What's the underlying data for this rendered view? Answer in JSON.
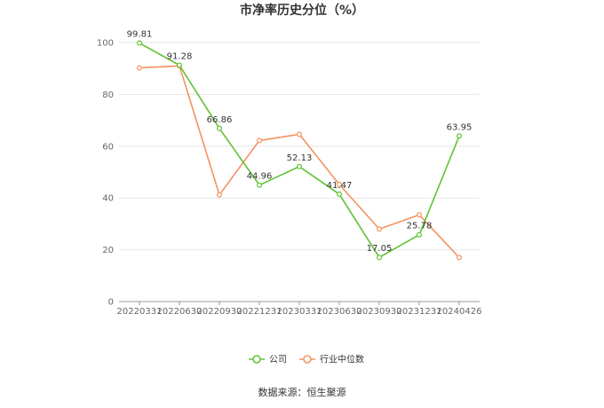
{
  "chart_data": {
    "type": "line",
    "title": "市净率历史分位（%）",
    "categories": [
      "20220331",
      "20220630",
      "20220930",
      "20221231",
      "20230331",
      "20230630",
      "20230930",
      "20231231",
      "20240426"
    ],
    "ylim": [
      0,
      100
    ],
    "yticks": [
      0,
      20,
      40,
      60,
      80,
      100
    ],
    "grid": true,
    "legend": "bottom-center",
    "series": [
      {
        "name": "公司",
        "color": "#5ec232",
        "values": [
          99.81,
          91.28,
          66.86,
          44.96,
          52.13,
          41.47,
          17.05,
          25.78,
          63.95
        ],
        "labels": [
          "99.81",
          "91.28",
          "66.86",
          "44.96",
          "52.13",
          "41.47",
          "17.05",
          "25.78",
          "63.95"
        ]
      },
      {
        "name": "行业中位数",
        "color": "#f4925f",
        "values": [
          90.2,
          91.0,
          41.2,
          62.2,
          64.6,
          45.2,
          28.0,
          33.5,
          17.0
        ]
      }
    ]
  },
  "source": "数据来源：恒生聚源"
}
